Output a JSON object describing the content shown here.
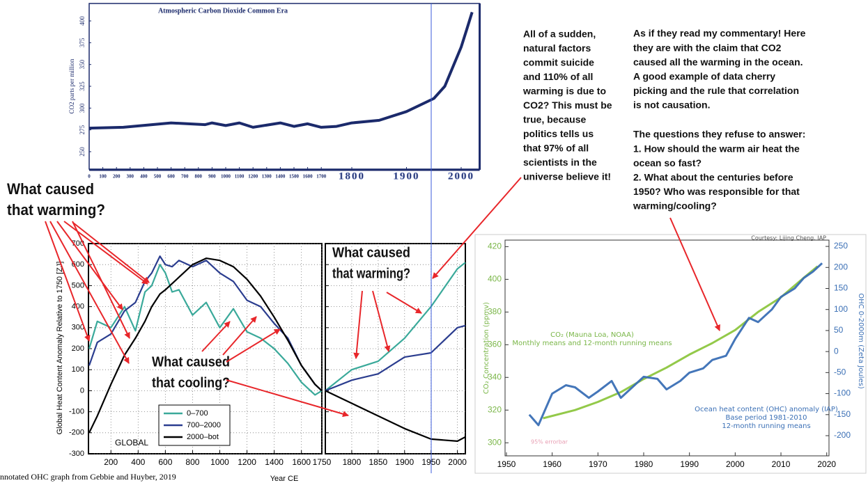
{
  "chart_data": [
    {
      "type": "line",
      "title": "Atmospheric Carbon Dioxide Common Era",
      "y_label": "CO2 parts per million",
      "x": [
        0,
        250,
        600,
        850,
        900,
        1000,
        1100,
        1200,
        1400,
        1500,
        1600,
        1700,
        1750,
        1800,
        1850,
        1900,
        1950,
        1970,
        2000,
        2010,
        2020
      ],
      "values": [
        277,
        278,
        283,
        281,
        283,
        280,
        283,
        278,
        283,
        279,
        282,
        278,
        279,
        283,
        286,
        296,
        311,
        325,
        370,
        390,
        410
      ],
      "color": "#1b2a6b",
      "xlim": [
        0,
        2030
      ],
      "xticks": [
        0,
        100,
        200,
        300,
        400,
        500,
        600,
        700,
        800,
        900,
        1000,
        1100,
        1200,
        1300,
        1400,
        1500,
        1600,
        1700,
        1800,
        1900,
        2000
      ],
      "ylim": [
        230,
        420
      ],
      "yticks": [
        250,
        275,
        300,
        325,
        350,
        375,
        400
      ]
    },
    {
      "type": "line",
      "y_label": "Global Heat Content Anomaly Relative to 1750 [ZJ]",
      "x_label": "Year CE",
      "region_label": "GLOBAL",
      "caption": "nnotated OHC graph from Gebbie and Huyber, 2019",
      "ylim": [
        -300,
        700
      ],
      "yticks": [
        -300,
        -200,
        -100,
        0,
        100,
        200,
        300,
        400,
        500,
        600,
        700
      ],
      "grid": true,
      "legend": "lower center",
      "panels": [
        {
          "xlim": [
            35,
            1750
          ],
          "xticks": [
            200,
            400,
            600,
            800,
            1000,
            1200,
            1400,
            1600,
            1750
          ]
        },
        {
          "xlim": [
            1750,
            2015
          ],
          "xticks": [
            1800,
            1850,
            1900,
            1950,
            2000
          ]
        }
      ],
      "x": [
        40,
        100,
        200,
        300,
        380,
        450,
        500,
        560,
        600,
        650,
        700,
        800,
        900,
        1000,
        1100,
        1200,
        1300,
        1400,
        1500,
        1600,
        1700,
        1750,
        1800,
        1850,
        1900,
        1950,
        2000,
        2015
      ],
      "series": [
        {
          "name": "0–700",
          "color": "#3aa99a",
          "values": [
            200,
            330,
            300,
            400,
            285,
            470,
            500,
            600,
            560,
            470,
            480,
            360,
            420,
            300,
            390,
            280,
            250,
            200,
            130,
            40,
            -20,
            0,
            100,
            140,
            250,
            400,
            580,
            610
          ]
        },
        {
          "name": "700–2000",
          "color": "#2b3d8f",
          "values": [
            120,
            230,
            270,
            380,
            420,
            520,
            560,
            640,
            600,
            590,
            620,
            590,
            620,
            560,
            520,
            430,
            400,
            320,
            250,
            120,
            30,
            0,
            50,
            80,
            160,
            180,
            300,
            310
          ]
        },
        {
          "name": "2000–bot",
          "color": "#000000",
          "values": [
            -200,
            -120,
            30,
            170,
            250,
            330,
            400,
            460,
            480,
            510,
            540,
            600,
            630,
            620,
            590,
            530,
            450,
            350,
            240,
            120,
            30,
            0,
            -60,
            -120,
            -180,
            -230,
            -240,
            -220
          ]
        }
      ],
      "annotations": [
        [
          "What caused",
          "that warming?"
        ],
        [
          "What caused",
          "that cooling?"
        ],
        [
          "What caused",
          "that warming?"
        ]
      ]
    },
    {
      "type": "line",
      "credit": "Courtesy: Lijing Cheng, IAP",
      "y_label": "CO₂ Concentration (ppmv)",
      "y2_label": "OHC 0-2000m (Zeta Joules)",
      "xlim": [
        1949.7,
        2020.5
      ],
      "xticks": [
        1950,
        1960,
        1970,
        1980,
        1990,
        2000,
        2010,
        2020
      ],
      "ylim": [
        292,
        424
      ],
      "yticks": [
        300,
        320,
        340,
        360,
        380,
        400,
        420
      ],
      "y2lim": [
        -248,
        265
      ],
      "y2ticks": [
        -200,
        -150,
        -100,
        -50,
        0,
        50,
        100,
        150,
        200,
        250
      ],
      "series": [
        {
          "name": "CO₂ (Mauna Loa, NOAA)",
          "note": [
            "Monthly means and 12-month running means"
          ],
          "color": "#8dc63f",
          "x": [
            1958,
            1965,
            1970,
            1975,
            1980,
            1985,
            1990,
            1995,
            2000,
            2005,
            2010,
            2015,
            2018
          ],
          "values": [
            315,
            320,
            325,
            331,
            339,
            346,
            354,
            361,
            369,
            380,
            389,
            401,
            408
          ]
        },
        {
          "name": "Ocean heat content (OHC) anomaly (IAP)",
          "note": [
            "Base period 1981-2010",
            "12-month running means"
          ],
          "color": "#3a6fb5",
          "axis": "y2",
          "x": [
            1955,
            1957,
            1960,
            1963,
            1965,
            1968,
            1970,
            1973,
            1975,
            1978,
            1980,
            1983,
            1985,
            1988,
            1990,
            1993,
            1995,
            1998,
            2000,
            2003,
            2005,
            2008,
            2010,
            2013,
            2015,
            2017,
            2019
          ],
          "values": [
            -150,
            -175,
            -100,
            -80,
            -85,
            -110,
            -95,
            -70,
            -110,
            -80,
            -60,
            -65,
            -90,
            -70,
            -50,
            -40,
            -20,
            -10,
            30,
            80,
            70,
            100,
            130,
            150,
            175,
            190,
            210
          ]
        }
      ],
      "errorbar_label": "95% errorbar"
    }
  ],
  "left_callout": [
    "What caused",
    "that warming?"
  ],
  "commentary_left": [
    "All of a sudden,",
    "natural factors",
    "commit suicide",
    "and 110% of all",
    "warming is due to",
    "CO2? This must be",
    "true, because",
    "politics tells us",
    "that 97% of all",
    "scientists in the",
    "universe believe it!"
  ],
  "commentary_right": [
    [
      "As if they read my commentary! Here",
      "they are with the claim that CO2",
      "caused all the warming in the ocean.",
      "A good example of data cherry",
      "picking and the rule that correlation",
      "is not causation."
    ],
    [
      "The questions they refuse to answer:",
      "1. How should the warm air heat the",
      "ocean so fast?",
      "2. What about the centuries before",
      "1950? Who was responsible for that",
      "warming/cooling?"
    ]
  ]
}
